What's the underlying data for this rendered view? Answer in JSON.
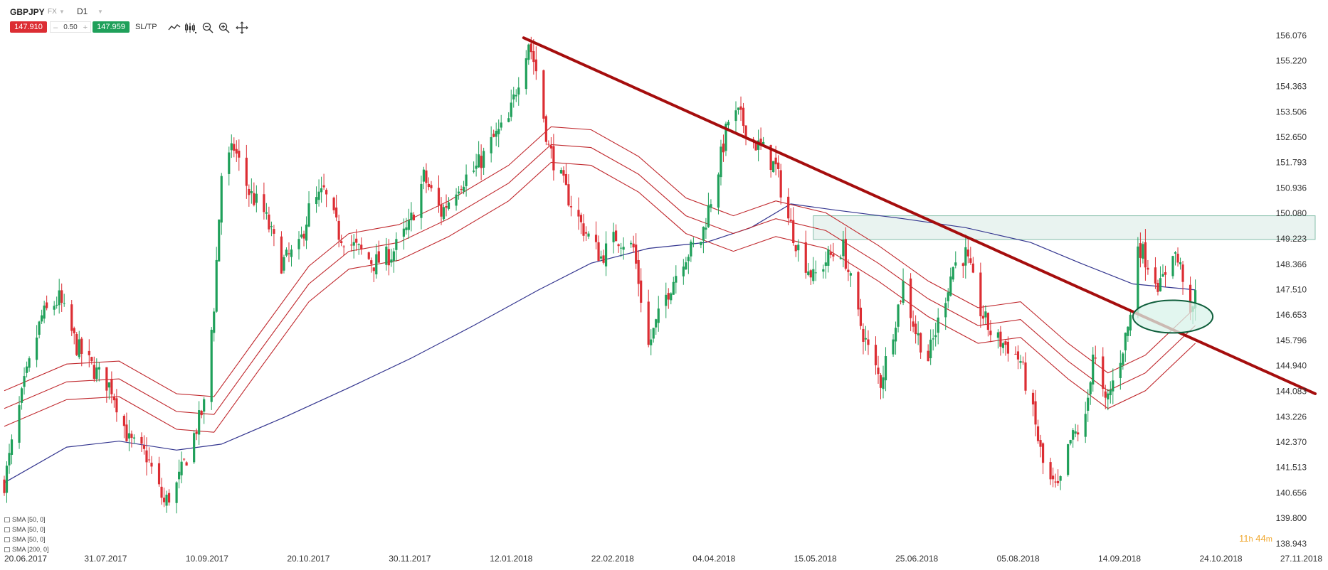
{
  "toolbar": {
    "symbol": "GBPJPY",
    "market": "FX",
    "timeframe": "D1",
    "sell_price": "147.910",
    "lot_minus": "–",
    "lot_size": "0.50",
    "lot_plus": "+",
    "buy_price": "147.959",
    "sltp_label": "SL/TP",
    "tools": [
      "line-chart-icon",
      "candles-icon",
      "zoom-out-icon",
      "zoom-in-icon",
      "crosshair-icon"
    ]
  },
  "legend": [
    "SMA [50, 0]",
    "SMA [50, 0]",
    "SMA [50, 0]",
    "SMA [200, 0]"
  ],
  "timer": {
    "hours": "11",
    "h_unit": "h",
    "minutes": "44",
    "m_unit": "m"
  },
  "colors": {
    "up": "#1fa05a",
    "down": "#dc2d33",
    "envelope": "#c0282d",
    "sma200": "#33358f",
    "trendline": "#a50d0d",
    "zone": "#2a8c6a",
    "ellipse_fill": "#d8f3ea",
    "ellipse_stroke": "#0f5e3b"
  },
  "chart_data": {
    "type": "candlestick",
    "x_ticks": [
      "20.06.2017",
      "31.07.2017",
      "10.09.2017",
      "20.10.2017",
      "30.11.2017",
      "12.01.2018",
      "22.02.2018",
      "04.04.2018",
      "15.05.2018",
      "25.06.2018",
      "05.08.2018",
      "14.09.2018",
      "24.10.2018",
      "27.11.2018"
    ],
    "y_ticks": [
      "156.076",
      "155.220",
      "154.363",
      "153.506",
      "152.650",
      "151.793",
      "150.936",
      "150.080",
      "149.223",
      "148.366",
      "147.510",
      "146.653",
      "145.796",
      "144.940",
      "144.083",
      "143.226",
      "142.370",
      "141.513",
      "140.656",
      "139.800",
      "138.943"
    ],
    "ylim": [
      138.943,
      156.076
    ],
    "xlim": [
      "2017-06-20",
      "2018-11-27"
    ],
    "close_path": [
      [
        "2017-06-20",
        141.0
      ],
      [
        "2017-06-28",
        144.3
      ],
      [
        "2017-07-05",
        146.6
      ],
      [
        "2017-07-12",
        147.2
      ],
      [
        "2017-07-19",
        145.6
      ],
      [
        "2017-07-26",
        144.8
      ],
      [
        "2017-08-02",
        144.2
      ],
      [
        "2017-08-09",
        142.4
      ],
      [
        "2017-08-16",
        141.9
      ],
      [
        "2017-08-23",
        140.3
      ],
      [
        "2017-08-28",
        140.9
      ],
      [
        "2017-09-04",
        142.6
      ],
      [
        "2017-09-08",
        143.6
      ],
      [
        "2017-09-12",
        147.0
      ],
      [
        "2017-09-15",
        151.4
      ],
      [
        "2017-09-20",
        152.3
      ],
      [
        "2017-09-26",
        150.8
      ],
      [
        "2017-10-02",
        150.1
      ],
      [
        "2017-10-09",
        148.4
      ],
      [
        "2017-10-16",
        148.9
      ],
      [
        "2017-10-20",
        150.2
      ],
      [
        "2017-10-26",
        150.8
      ],
      [
        "2017-11-01",
        149.4
      ],
      [
        "2017-11-08",
        148.9
      ],
      [
        "2017-11-15",
        148.4
      ],
      [
        "2017-11-22",
        148.7
      ],
      [
        "2017-11-29",
        149.6
      ],
      [
        "2017-12-05",
        151.3
      ],
      [
        "2017-12-12",
        150.1
      ],
      [
        "2017-12-19",
        151.1
      ],
      [
        "2017-12-26",
        151.6
      ],
      [
        "2018-01-02",
        152.6
      ],
      [
        "2018-01-08",
        153.2
      ],
      [
        "2018-01-13",
        155.0
      ],
      [
        "2018-01-16",
        155.9
      ],
      [
        "2018-01-19",
        154.9
      ],
      [
        "2018-01-24",
        152.3
      ],
      [
        "2018-01-31",
        150.8
      ],
      [
        "2018-02-06",
        149.7
      ],
      [
        "2018-02-14",
        148.6
      ],
      [
        "2018-02-20",
        149.3
      ],
      [
        "2018-02-27",
        148.9
      ],
      [
        "2018-03-05",
        145.6
      ],
      [
        "2018-03-12",
        147.3
      ],
      [
        "2018-03-19",
        148.6
      ],
      [
        "2018-03-26",
        149.2
      ],
      [
        "2018-04-02",
        151.6
      ],
      [
        "2018-04-06",
        153.2
      ],
      [
        "2018-04-10",
        153.4
      ],
      [
        "2018-04-16",
        152.5
      ],
      [
        "2018-04-20",
        152.2
      ],
      [
        "2018-04-25",
        151.6
      ],
      [
        "2018-04-30",
        149.9
      ],
      [
        "2018-05-04",
        148.9
      ],
      [
        "2018-05-10",
        147.9
      ],
      [
        "2018-05-16",
        148.6
      ],
      [
        "2018-05-22",
        148.9
      ],
      [
        "2018-05-28",
        146.6
      ],
      [
        "2018-06-02",
        145.2
      ],
      [
        "2018-06-06",
        144.4
      ],
      [
        "2018-06-10",
        145.8
      ],
      [
        "2018-06-15",
        147.7
      ],
      [
        "2018-06-20",
        146.1
      ],
      [
        "2018-06-25",
        145.2
      ],
      [
        "2018-06-30",
        146.7
      ],
      [
        "2018-07-05",
        148.3
      ],
      [
        "2018-07-10",
        148.7
      ],
      [
        "2018-07-16",
        146.8
      ],
      [
        "2018-07-21",
        145.9
      ],
      [
        "2018-07-27",
        145.6
      ],
      [
        "2018-08-01",
        145.1
      ],
      [
        "2018-08-06",
        143.3
      ],
      [
        "2018-08-11",
        141.2
      ],
      [
        "2018-08-16",
        140.7
      ],
      [
        "2018-08-21",
        142.4
      ],
      [
        "2018-08-27",
        143.1
      ],
      [
        "2018-08-30",
        145.4
      ],
      [
        "2018-09-04",
        143.6
      ],
      [
        "2018-09-09",
        144.9
      ],
      [
        "2018-09-14",
        146.6
      ],
      [
        "2018-09-17",
        149.1
      ],
      [
        "2018-09-21",
        148.4
      ],
      [
        "2018-09-26",
        147.6
      ],
      [
        "2018-10-01",
        148.9
      ],
      [
        "2018-10-05",
        148.0
      ],
      [
        "2018-10-08",
        146.4
      ],
      [
        "2018-10-10",
        147.3
      ]
    ],
    "sma200": [
      [
        "2017-06-20",
        141.0
      ],
      [
        "2017-07-15",
        142.2
      ],
      [
        "2017-08-05",
        142.4
      ],
      [
        "2017-08-28",
        142.1
      ],
      [
        "2017-09-15",
        142.3
      ],
      [
        "2017-10-10",
        143.2
      ],
      [
        "2017-11-05",
        144.2
      ],
      [
        "2017-11-30",
        145.2
      ],
      [
        "2017-12-25",
        146.3
      ],
      [
        "2018-01-20",
        147.5
      ],
      [
        "2018-02-10",
        148.4
      ],
      [
        "2018-03-05",
        148.9
      ],
      [
        "2018-03-28",
        149.1
      ],
      [
        "2018-04-15",
        149.6
      ],
      [
        "2018-05-01",
        150.4
      ],
      [
        "2018-05-18",
        150.2
      ],
      [
        "2018-06-15",
        149.9
      ],
      [
        "2018-07-10",
        149.6
      ],
      [
        "2018-08-05",
        149.1
      ],
      [
        "2018-08-25",
        148.4
      ],
      [
        "2018-09-15",
        147.7
      ],
      [
        "2018-10-10",
        147.5
      ]
    ],
    "sma50_mid": [
      [
        "2017-06-20",
        143.5
      ],
      [
        "2017-07-15",
        144.4
      ],
      [
        "2017-08-05",
        144.5
      ],
      [
        "2017-08-28",
        143.4
      ],
      [
        "2017-09-12",
        143.3
      ],
      [
        "2017-09-30",
        145.4
      ],
      [
        "2017-10-20",
        147.7
      ],
      [
        "2017-11-05",
        148.8
      ],
      [
        "2017-11-25",
        149.1
      ],
      [
        "2017-12-15",
        149.9
      ],
      [
        "2018-01-08",
        151.1
      ],
      [
        "2018-01-25",
        152.4
      ],
      [
        "2018-02-10",
        152.3
      ],
      [
        "2018-03-01",
        151.4
      ],
      [
        "2018-03-20",
        150.0
      ],
      [
        "2018-04-08",
        149.4
      ],
      [
        "2018-04-25",
        149.9
      ],
      [
        "2018-05-15",
        149.5
      ],
      [
        "2018-06-05",
        148.4
      ],
      [
        "2018-06-25",
        147.2
      ],
      [
        "2018-07-15",
        146.3
      ],
      [
        "2018-08-01",
        146.5
      ],
      [
        "2018-08-20",
        145.1
      ],
      [
        "2018-09-05",
        144.1
      ],
      [
        "2018-09-20",
        144.7
      ],
      [
        "2018-10-10",
        146.3
      ]
    ],
    "envelope_offset": 0.6,
    "trendline": [
      [
        "2018-01-14",
        156.0
      ],
      [
        "2018-11-27",
        144.0
      ]
    ],
    "resistance_zone": [
      [
        "2018-05-10",
        150.0
      ],
      [
        "2018-11-27",
        149.2
      ]
    ],
    "highlight_ellipse": {
      "center": [
        "2018-10-01",
        146.6
      ],
      "dx_days": 16,
      "dy": 0.55
    }
  }
}
